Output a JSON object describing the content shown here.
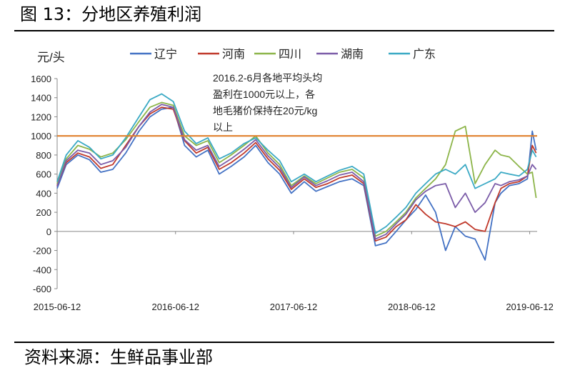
{
  "figure": {
    "title": "图 13：分地区养殖利润",
    "source": "资料来源：生鲜品事业部"
  },
  "colors": {
    "辽宁": "#4472C4",
    "河南": "#C0392B",
    "四川": "#8DB54A",
    "湖南": "#7B5CA8",
    "广东": "#3AA9C4",
    "reference": "#E0802E"
  },
  "chart_data": {
    "type": "line",
    "ylabel": "元/头",
    "ylim": [
      -600,
      1600
    ],
    "yticks": [
      1600,
      1400,
      1200,
      1000,
      800,
      600,
      400,
      200,
      0,
      -200,
      -400,
      -600
    ],
    "xlim": [
      "2015-06-12",
      "2019-07-05"
    ],
    "xticks": [
      "2015-06-12",
      "2016-06-12",
      "2017-06-12",
      "2018-06-12",
      "2019-06-12"
    ],
    "grid": false,
    "legend_position": "top",
    "reference_line": {
      "y": 1000
    },
    "annotation": [
      "2016.2-6月各地平均头均",
      "盈利在1000元以上，各",
      "地毛猪价保持在20元/kg",
      "以上"
    ],
    "series": [
      {
        "name": "辽宁",
        "x": [
          "2015-06-12",
          "2015-07-10",
          "2015-08-15",
          "2015-09-20",
          "2015-10-25",
          "2015-12-01",
          "2016-01-10",
          "2016-02-20",
          "2016-03-25",
          "2016-04-30",
          "2016-06-05",
          "2016-07-10",
          "2016-08-15",
          "2016-09-20",
          "2016-10-25",
          "2016-12-01",
          "2017-01-10",
          "2017-02-15",
          "2017-03-25",
          "2017-04-30",
          "2017-06-05",
          "2017-07-15",
          "2017-08-20",
          "2017-09-25",
          "2017-11-01",
          "2017-12-10",
          "2018-01-15",
          "2018-02-20",
          "2018-03-25",
          "2018-04-25",
          "2018-05-25",
          "2018-06-25",
          "2018-07-25",
          "2018-08-25",
          "2018-09-25",
          "2018-10-25",
          "2018-11-25",
          "2018-12-25",
          "2019-01-25",
          "2019-02-25",
          "2019-03-15",
          "2019-04-10",
          "2019-05-10",
          "2019-06-05",
          "2019-06-20",
          "2019-07-02"
        ],
        "y": [
          450,
          700,
          800,
          750,
          620,
          650,
          820,
          1050,
          1200,
          1280,
          1300,
          900,
          780,
          850,
          600,
          680,
          780,
          900,
          720,
          600,
          400,
          520,
          420,
          470,
          520,
          550,
          480,
          -150,
          -120,
          0,
          120,
          230,
          380,
          200,
          -200,
          50,
          -50,
          -80,
          -300,
          300,
          400,
          480,
          500,
          550,
          1050,
          850
        ]
      },
      {
        "name": "河南",
        "x": [
          "2015-06-12",
          "2015-07-10",
          "2015-08-15",
          "2015-09-20",
          "2015-10-25",
          "2015-12-01",
          "2016-01-10",
          "2016-02-20",
          "2016-03-25",
          "2016-04-30",
          "2016-06-05",
          "2016-07-10",
          "2016-08-15",
          "2016-09-20",
          "2016-10-25",
          "2016-12-01",
          "2017-01-10",
          "2017-02-15",
          "2017-03-25",
          "2017-04-30",
          "2017-06-05",
          "2017-07-15",
          "2017-08-20",
          "2017-09-25",
          "2017-11-01",
          "2017-12-10",
          "2018-01-15",
          "2018-02-20",
          "2018-03-25",
          "2018-04-25",
          "2018-05-25",
          "2018-06-25",
          "2018-07-25",
          "2018-08-25",
          "2018-09-25",
          "2018-10-25",
          "2018-11-25",
          "2018-12-25",
          "2019-01-25",
          "2019-02-25",
          "2019-03-15",
          "2019-04-10",
          "2019-05-10",
          "2019-06-05",
          "2019-06-20",
          "2019-07-02"
        ],
        "y": [
          480,
          720,
          820,
          780,
          660,
          700,
          900,
          1100,
          1230,
          1300,
          1280,
          950,
          820,
          880,
          650,
          720,
          820,
          930,
          760,
          640,
          440,
          550,
          460,
          500,
          560,
          590,
          500,
          -100,
          -60,
          50,
          120,
          280,
          180,
          100,
          80,
          50,
          100,
          20,
          0,
          300,
          450,
          500,
          520,
          580,
          900,
          820
        ]
      },
      {
        "name": "四川",
        "x": [
          "2015-06-12",
          "2015-07-10",
          "2015-08-15",
          "2015-09-20",
          "2015-10-25",
          "2015-12-01",
          "2016-01-10",
          "2016-02-20",
          "2016-03-25",
          "2016-04-30",
          "2016-06-05",
          "2016-07-10",
          "2016-08-15",
          "2016-09-20",
          "2016-10-25",
          "2016-12-01",
          "2017-01-10",
          "2017-02-15",
          "2017-03-25",
          "2017-04-30",
          "2017-06-05",
          "2017-07-15",
          "2017-08-20",
          "2017-09-25",
          "2017-11-01",
          "2017-12-10",
          "2018-01-15",
          "2018-02-20",
          "2018-03-25",
          "2018-04-25",
          "2018-05-25",
          "2018-06-25",
          "2018-07-25",
          "2018-08-25",
          "2018-09-25",
          "2018-10-25",
          "2018-11-25",
          "2018-12-25",
          "2019-01-25",
          "2019-02-25",
          "2019-03-15",
          "2019-04-10",
          "2019-05-10",
          "2019-06-05",
          "2019-06-20",
          "2019-07-02"
        ],
        "y": [
          500,
          760,
          900,
          860,
          780,
          820,
          960,
          1150,
          1300,
          1350,
          1320,
          1000,
          900,
          950,
          720,
          800,
          900,
          1000,
          820,
          700,
          480,
          580,
          500,
          560,
          620,
          650,
          560,
          -50,
          0,
          100,
          200,
          350,
          450,
          550,
          700,
          1050,
          1100,
          500,
          700,
          850,
          800,
          780,
          680,
          600,
          620,
          350
        ]
      },
      {
        "name": "湖南",
        "x": [
          "2015-06-12",
          "2015-07-10",
          "2015-08-15",
          "2015-09-20",
          "2015-10-25",
          "2015-12-01",
          "2016-01-10",
          "2016-02-20",
          "2016-03-25",
          "2016-04-30",
          "2016-06-05",
          "2016-07-10",
          "2016-08-15",
          "2016-09-20",
          "2016-10-25",
          "2016-12-01",
          "2017-01-10",
          "2017-02-15",
          "2017-03-25",
          "2017-04-30",
          "2017-06-05",
          "2017-07-15",
          "2017-08-20",
          "2017-09-25",
          "2017-11-01",
          "2017-12-10",
          "2018-01-15",
          "2018-02-20",
          "2018-03-25",
          "2018-04-25",
          "2018-05-25",
          "2018-06-25",
          "2018-07-25",
          "2018-08-25",
          "2018-09-25",
          "2018-10-25",
          "2018-11-25",
          "2018-12-25",
          "2019-01-25",
          "2019-02-25",
          "2019-03-15",
          "2019-04-10",
          "2019-05-10",
          "2019-06-05",
          "2019-06-20",
          "2019-07-02"
        ],
        "y": [
          470,
          740,
          850,
          820,
          700,
          740,
          880,
          1100,
          1250,
          1330,
          1300,
          960,
          850,
          900,
          680,
          760,
          860,
          960,
          790,
          670,
          460,
          570,
          480,
          530,
          590,
          620,
          520,
          -80,
          -30,
          80,
          180,
          330,
          420,
          480,
          500,
          250,
          400,
          200,
          300,
          500,
          480,
          520,
          540,
          580,
          700,
          650
        ]
      },
      {
        "name": "广东",
        "x": [
          "2015-06-12",
          "2015-07-10",
          "2015-08-15",
          "2015-09-20",
          "2015-10-25",
          "2015-12-01",
          "2016-01-10",
          "2016-02-20",
          "2016-03-25",
          "2016-04-30",
          "2016-06-05",
          "2016-07-10",
          "2016-08-15",
          "2016-09-20",
          "2016-10-25",
          "2016-12-01",
          "2017-01-10",
          "2017-02-15",
          "2017-03-25",
          "2017-04-30",
          "2017-06-05",
          "2017-07-15",
          "2017-08-20",
          "2017-09-25",
          "2017-11-01",
          "2017-12-10",
          "2018-01-15",
          "2018-02-20",
          "2018-03-25",
          "2018-04-25",
          "2018-05-25",
          "2018-06-25",
          "2018-07-25",
          "2018-08-25",
          "2018-09-25",
          "2018-10-25",
          "2018-11-25",
          "2018-12-25",
          "2019-01-25",
          "2019-02-25",
          "2019-03-15",
          "2019-04-10",
          "2019-05-10",
          "2019-06-05",
          "2019-06-20",
          "2019-07-02"
        ],
        "y": [
          520,
          800,
          950,
          880,
          760,
          800,
          980,
          1200,
          1380,
          1440,
          1360,
          1050,
          920,
          980,
          760,
          820,
          920,
          980,
          850,
          740,
          520,
          600,
          520,
          580,
          640,
          680,
          600,
          -20,
          50,
          150,
          250,
          400,
          500,
          600,
          650,
          600,
          700,
          450,
          500,
          550,
          620,
          600,
          580,
          650,
          850,
          780
        ]
      }
    ]
  }
}
